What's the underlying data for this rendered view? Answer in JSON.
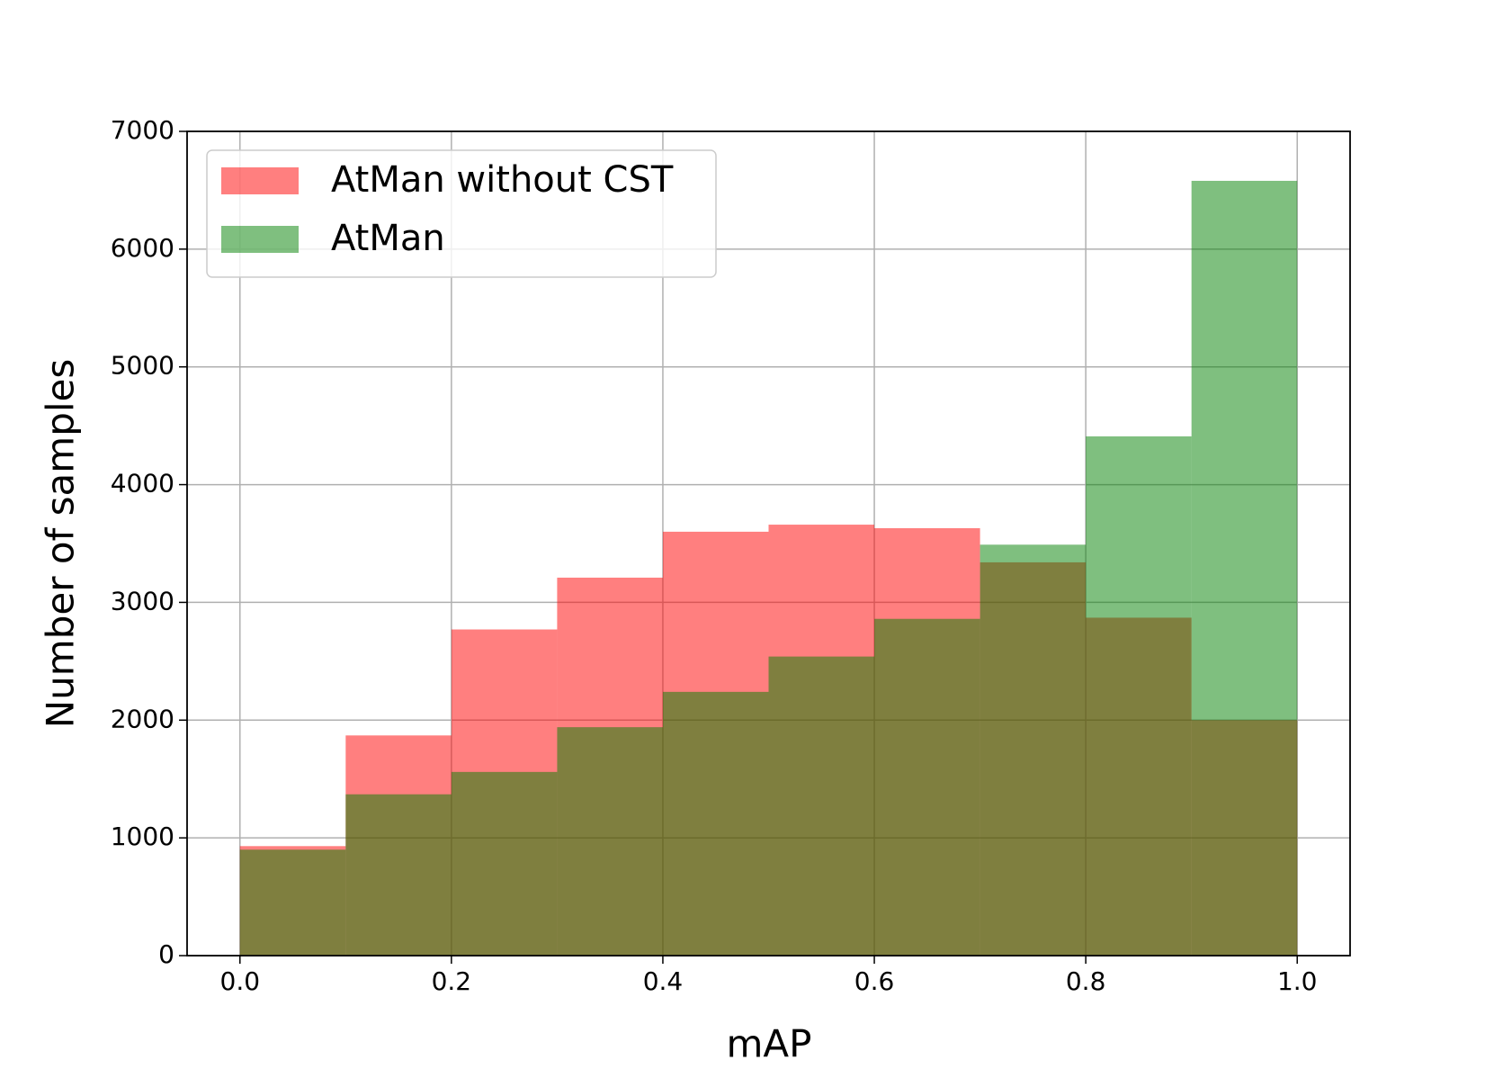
{
  "chart_data": {
    "type": "histogram",
    "xlabel": "mAP",
    "ylabel": "Number of samples",
    "bins": [
      0,
      0.1,
      0.2,
      0.3,
      0.4,
      0.5,
      0.6,
      0.7,
      0.8,
      0.9,
      1
    ],
    "series": [
      {
        "name": "AtMan without CST",
        "color": "#ff0000",
        "values": [
          930,
          1870,
          2770,
          3210,
          3600,
          3660,
          3630,
          3340,
          2870,
          2000
        ]
      },
      {
        "name": "AtMan",
        "color": "#008000",
        "values": [
          900,
          1370,
          1560,
          1940,
          2240,
          2540,
          2860,
          3490,
          4410,
          6580
        ]
      }
    ],
    "xlim": [
      -0.05,
      1.05
    ],
    "xticks": [
      {
        "value": 0,
        "label": "0.0"
      },
      0.2,
      0.4,
      0.6,
      0.8,
      {
        "value": 1,
        "label": "1.0"
      }
    ],
    "ylim": [
      0,
      7000
    ],
    "yticks": [
      0,
      1000,
      2000,
      3000,
      4000,
      5000,
      6000,
      7000
    ],
    "grid": true,
    "legend": "upper-left"
  }
}
